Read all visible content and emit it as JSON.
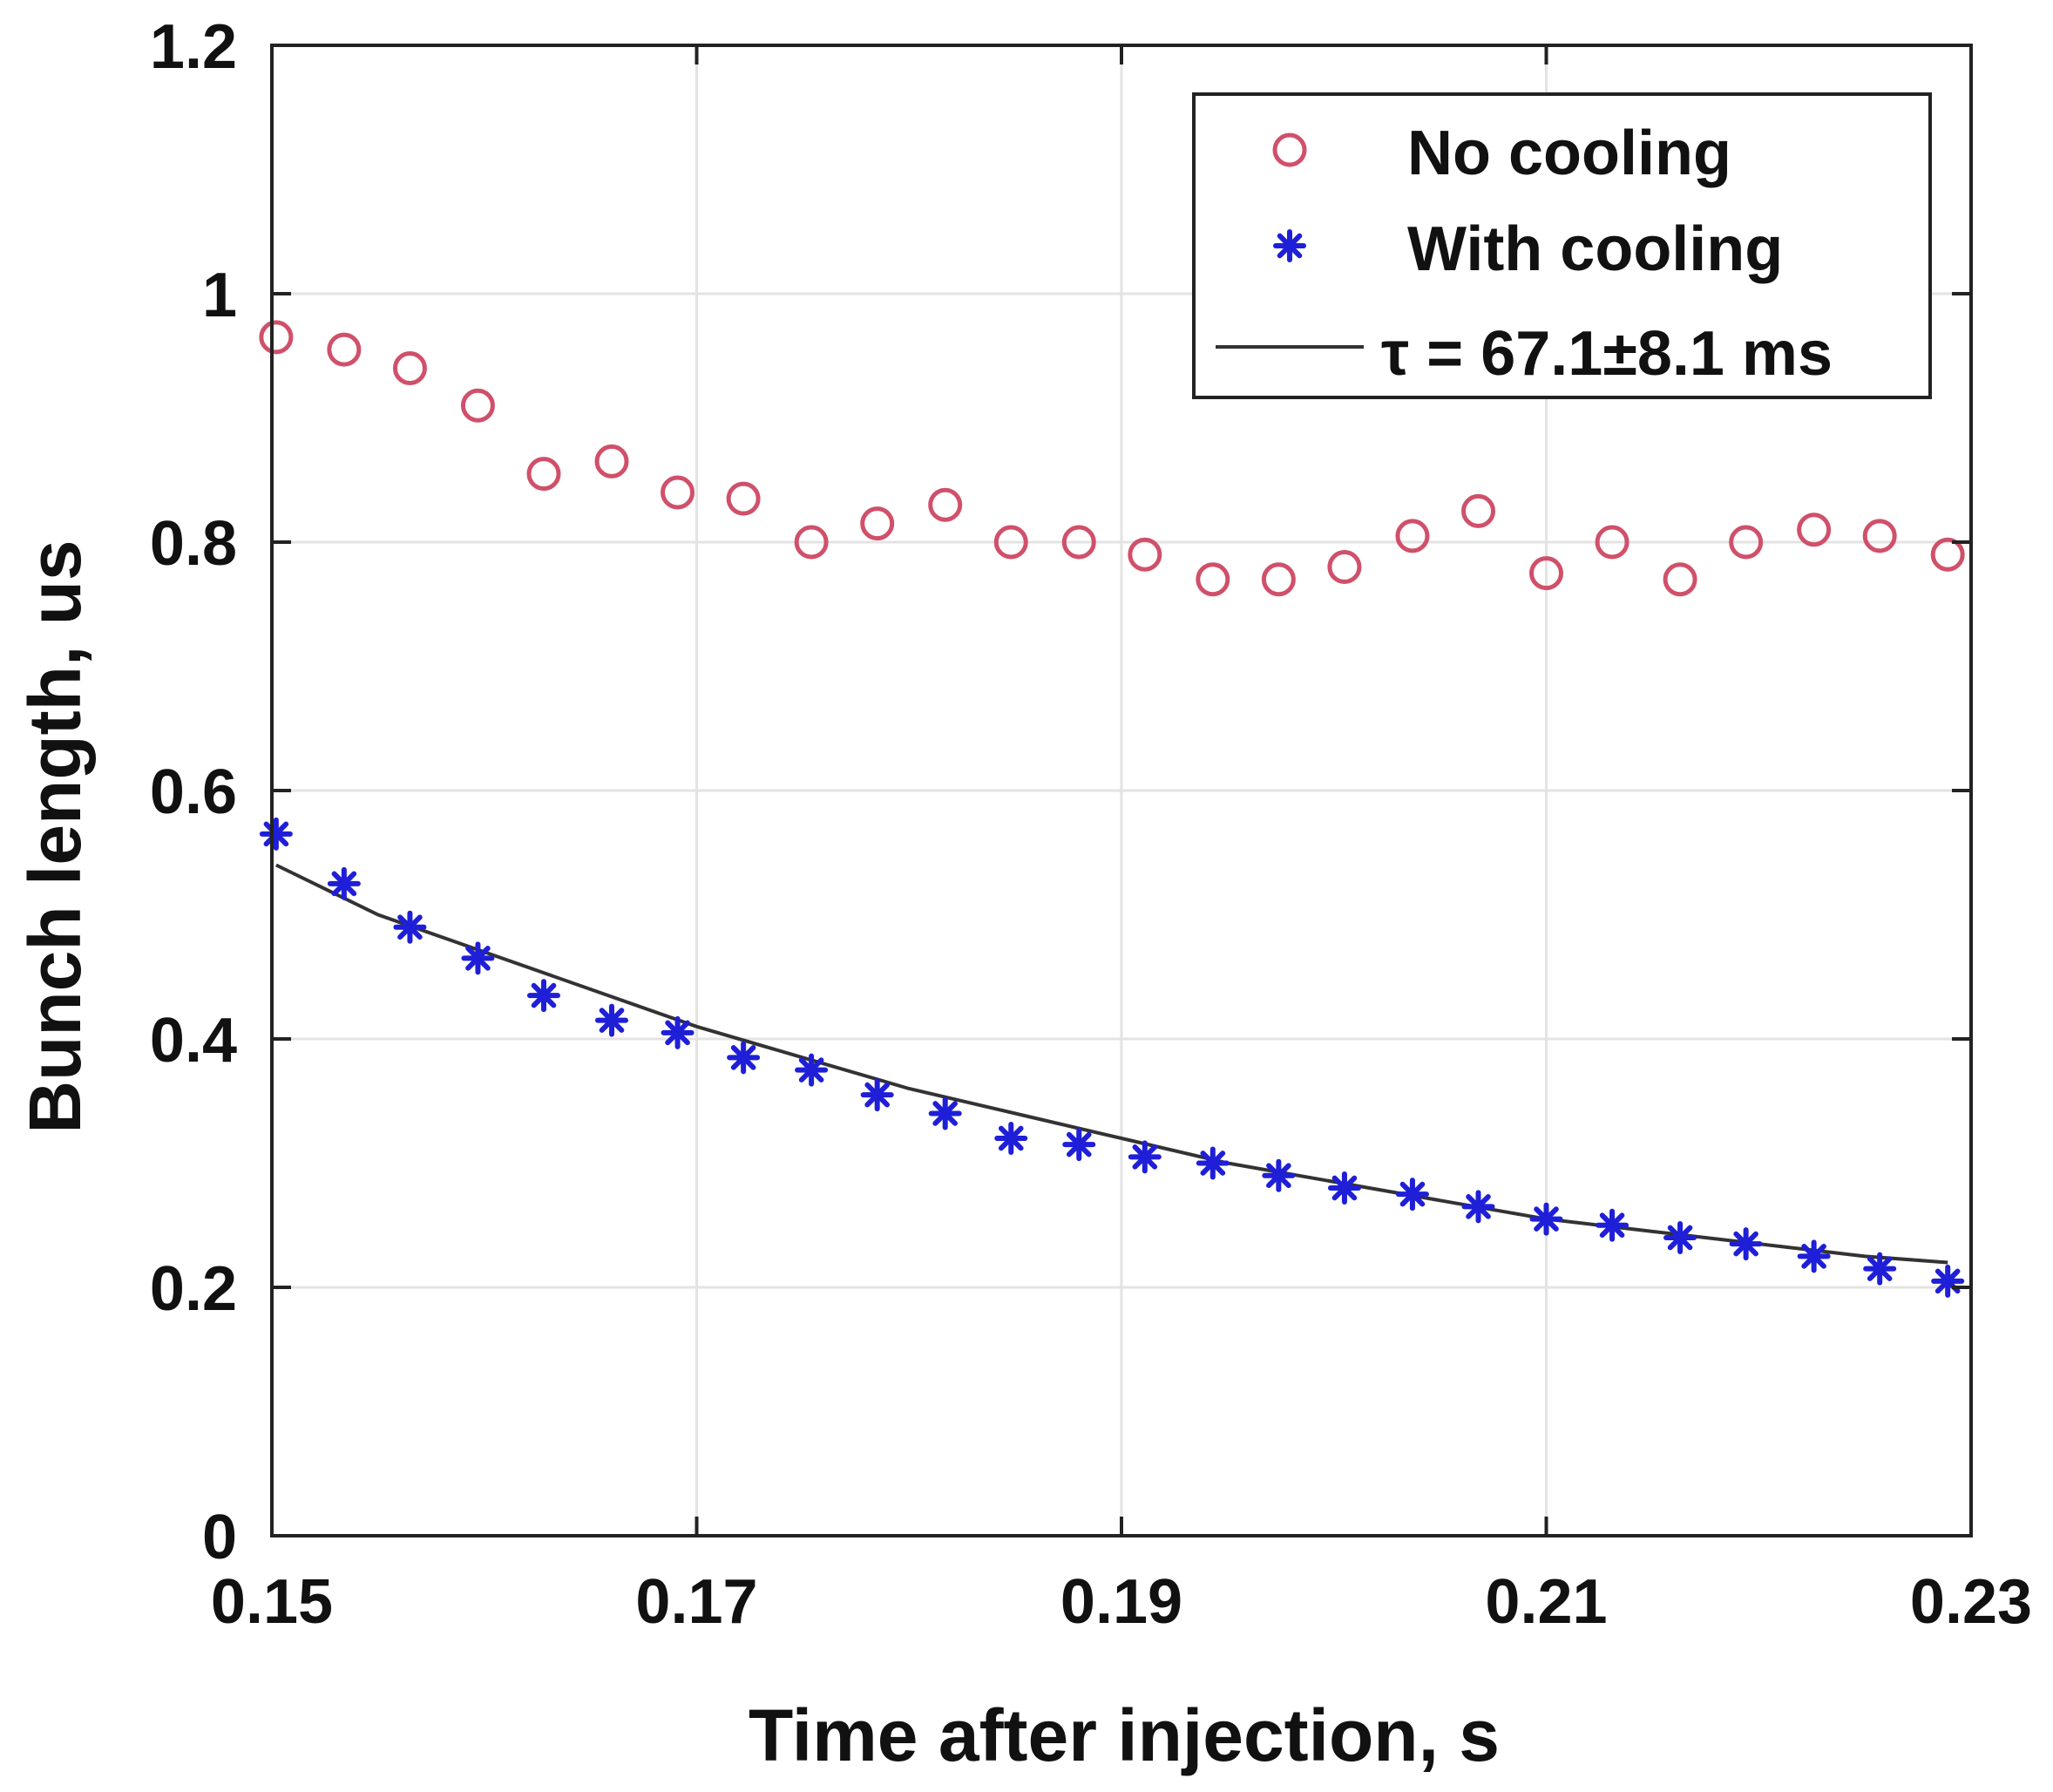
{
  "chart_data": {
    "type": "scatter",
    "xlabel": "Time after injection, s",
    "ylabel": "Bunch length, us",
    "xlim": [
      0.15,
      0.23
    ],
    "ylim": [
      0,
      1.2
    ],
    "xticks": [
      0.15,
      0.17,
      0.19,
      0.21,
      0.23
    ],
    "xtick_labels": [
      "0.15",
      "0.17",
      "0.19",
      "0.21",
      "0.23"
    ],
    "yticks": [
      0,
      0.2,
      0.4,
      0.6,
      0.8,
      1,
      1.2
    ],
    "ytick_labels": [
      "0",
      "0.2",
      "0.4",
      "0.6",
      "0.8",
      "1",
      "1.2"
    ],
    "grid": true,
    "legend_position": "top-right",
    "series": [
      {
        "name": "No cooling",
        "marker": "circle-open",
        "color": "#d0506a",
        "x": [
          0.1502,
          0.1534,
          0.1565,
          0.1597,
          0.1628,
          0.166,
          0.1691,
          0.1722,
          0.1754,
          0.1785,
          0.1817,
          0.1848,
          0.188,
          0.1911,
          0.1943,
          0.1974,
          0.2005,
          0.2037,
          0.2068,
          0.21,
          0.2131,
          0.2163,
          0.2194,
          0.2226,
          0.2257,
          0.2289
        ],
        "y": [
          0.965,
          0.955,
          0.94,
          0.91,
          0.855,
          0.865,
          0.84,
          0.835,
          0.8,
          0.815,
          0.83,
          0.8,
          0.8,
          0.79,
          0.77,
          0.77,
          0.78,
          0.805,
          0.825,
          0.775,
          0.8,
          0.77,
          0.8,
          0.81,
          0.805,
          0.79
        ]
      },
      {
        "name": "With cooling",
        "marker": "star",
        "color": "#1f1fd8",
        "x": [
          0.1502,
          0.1534,
          0.1565,
          0.1597,
          0.1628,
          0.166,
          0.1691,
          0.1722,
          0.1754,
          0.1785,
          0.1817,
          0.1848,
          0.188,
          0.1911,
          0.1943,
          0.1974,
          0.2005,
          0.2037,
          0.2068,
          0.21,
          0.2131,
          0.2163,
          0.2194,
          0.2226,
          0.2257,
          0.2289
        ],
        "y": [
          0.565,
          0.525,
          0.49,
          0.465,
          0.435,
          0.415,
          0.405,
          0.385,
          0.375,
          0.355,
          0.34,
          0.32,
          0.315,
          0.305,
          0.3,
          0.29,
          0.28,
          0.275,
          0.265,
          0.255,
          0.25,
          0.24,
          0.235,
          0.225,
          0.215,
          0.205
        ]
      },
      {
        "name": "τ = 67.1±8.1 ms",
        "type": "line",
        "color": "#333333",
        "x": [
          0.1502,
          0.155,
          0.16,
          0.165,
          0.17,
          0.175,
          0.18,
          0.185,
          0.19,
          0.195,
          0.2,
          0.205,
          0.21,
          0.215,
          0.22,
          0.225,
          0.2289
        ],
        "y": [
          0.54,
          0.5,
          0.47,
          0.44,
          0.41,
          0.385,
          0.36,
          0.34,
          0.32,
          0.3,
          0.285,
          0.27,
          0.255,
          0.245,
          0.235,
          0.225,
          0.22
        ]
      }
    ],
    "legend": {
      "items": [
        {
          "label": "No cooling",
          "marker": "circle-open"
        },
        {
          "label": "With cooling",
          "marker": "star"
        },
        {
          "label": "τ = 67.1±8.1 ms",
          "marker": "line"
        }
      ]
    }
  }
}
